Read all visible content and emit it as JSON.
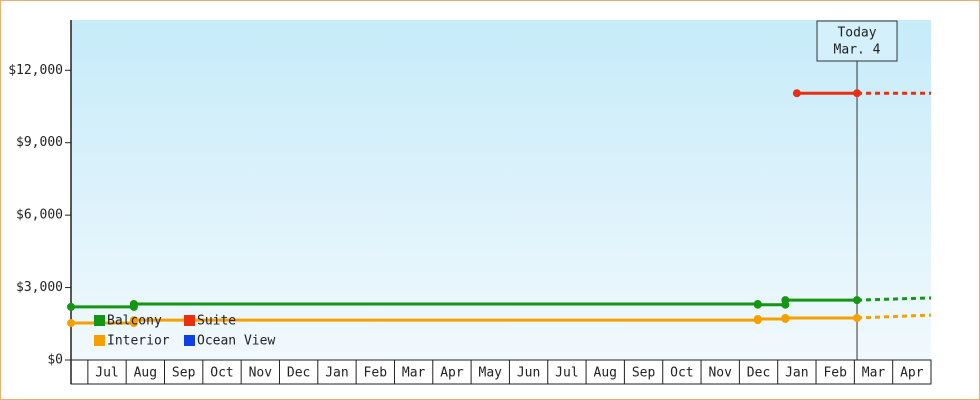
{
  "chart_data": {
    "type": "line",
    "xlim": [
      -0.44,
      22
    ],
    "xticks": [
      {
        "value": 0.5,
        "label": "Jul"
      },
      {
        "value": 1.5,
        "label": "Aug"
      },
      {
        "value": 2.5,
        "label": "Sep"
      },
      {
        "value": 3.5,
        "label": "Oct"
      },
      {
        "value": 4.5,
        "label": "Nov"
      },
      {
        "value": 5.5,
        "label": "Dec"
      },
      {
        "value": 6.5,
        "label": "Jan"
      },
      {
        "value": 7.5,
        "label": "Feb"
      },
      {
        "value": 8.5,
        "label": "Mar"
      },
      {
        "value": 9.5,
        "label": "Apr"
      },
      {
        "value": 10.5,
        "label": "May"
      },
      {
        "value": 11.5,
        "label": "Jun"
      },
      {
        "value": 12.5,
        "label": "Jul"
      },
      {
        "value": 13.5,
        "label": "Aug"
      },
      {
        "value": 14.5,
        "label": "Sep"
      },
      {
        "value": 15.5,
        "label": "Oct"
      },
      {
        "value": 16.5,
        "label": "Nov"
      },
      {
        "value": 17.5,
        "label": "Dec"
      },
      {
        "value": 18.5,
        "label": "Jan"
      },
      {
        "value": 19.5,
        "label": "Feb"
      },
      {
        "value": 20.5,
        "label": "Mar"
      },
      {
        "value": 21.5,
        "label": "Apr"
      }
    ],
    "ylim": [
      0,
      14000
    ],
    "yticks": [
      {
        "value": 0,
        "label": "$0"
      },
      {
        "value": 3000,
        "label": "$3,000"
      },
      {
        "value": 6000,
        "label": "$6,000"
      },
      {
        "value": 9000,
        "label": "$9,000"
      },
      {
        "value": 12000,
        "label": "$12,000"
      }
    ],
    "today": {
      "x": 20.07,
      "label": "Today",
      "date": "Mar. 4"
    },
    "series": [
      {
        "name": "Balcony",
        "color": "#149614",
        "x": [
          -0.44,
          1.2,
          1.2,
          17.48,
          17.48,
          18.2,
          18.2,
          20.07
        ],
        "values": [
          2200,
          2200,
          2320,
          2320,
          2290,
          2290,
          2480,
          2480
        ],
        "projection": {
          "x": [
            20.07,
            22
          ],
          "values": [
            2480,
            2570
          ]
        }
      },
      {
        "name": "Suite",
        "color": "#e83010",
        "x": [
          18.5,
          20.07
        ],
        "values": [
          11050,
          11050
        ],
        "projection": {
          "x": [
            20.07,
            22
          ],
          "values": [
            11050,
            11050
          ]
        }
      },
      {
        "name": "Interior",
        "color": "#f5a000",
        "x": [
          -0.44,
          1.2,
          1.2,
          17.48,
          17.48,
          18.2,
          18.2,
          20.07
        ],
        "values": [
          1530,
          1530,
          1650,
          1650,
          1700,
          1700,
          1740,
          1740
        ],
        "projection": {
          "x": [
            20.07,
            22
          ],
          "values": [
            1740,
            1860
          ]
        }
      },
      {
        "name": "Ocean View",
        "color": "#1040e0",
        "x": [],
        "values": [],
        "projection": {
          "x": [],
          "values": []
        }
      }
    ]
  }
}
